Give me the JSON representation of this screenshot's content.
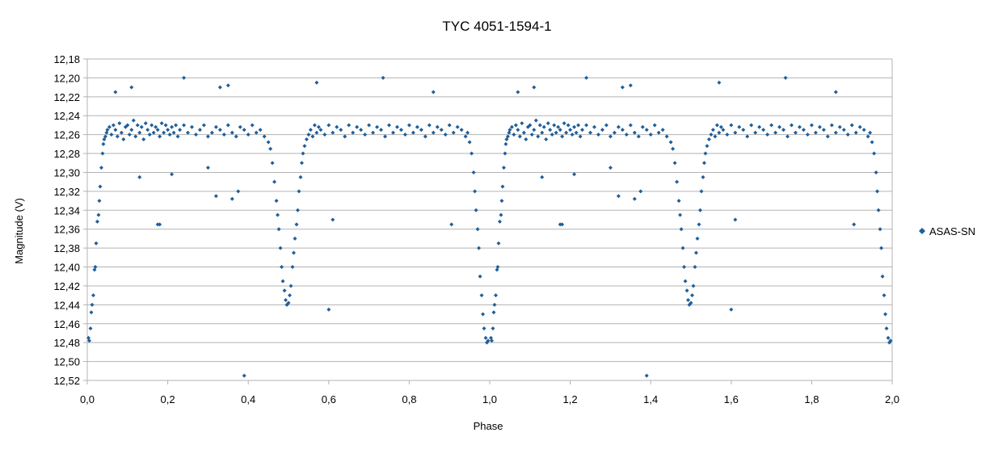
{
  "chart_data": {
    "type": "scatter",
    "title": "TYC 4051-1594-1",
    "xlabel": "Phase",
    "ylabel": "Magnitude (V)",
    "xlim": [
      0.0,
      2.0
    ],
    "ylim": [
      12.18,
      12.52
    ],
    "y_inverted": true,
    "x_ticks": [
      "0,0",
      "0,2",
      "0,4",
      "0,6",
      "0,8",
      "1,0",
      "1,2",
      "1,4",
      "1,6",
      "1,8",
      "2,0"
    ],
    "y_ticks": [
      "12,18",
      "12,20",
      "12,22",
      "12,24",
      "12,26",
      "12,28",
      "12,30",
      "12,32",
      "12,34",
      "12,36",
      "12,38",
      "12,40",
      "12,42",
      "12,44",
      "12,46",
      "12,48",
      "12,50",
      "12,52"
    ],
    "grid": "horizontal",
    "legend": "right",
    "colors": {
      "series": "#1f5f99",
      "grid": "#b3b3b3",
      "axis": "#b3b3b3"
    },
    "series": [
      {
        "name": "ASAS-SN",
        "marker": "diamond",
        "x": [
          0.003,
          0.005,
          0.008,
          0.01,
          0.012,
          0.015,
          0.018,
          0.02,
          0.022,
          0.025,
          0.028,
          0.03,
          0.032,
          0.035,
          0.038,
          0.04,
          0.042,
          0.045,
          0.048,
          0.05,
          0.055,
          0.06,
          0.065,
          0.07,
          0.075,
          0.08,
          0.085,
          0.09,
          0.095,
          0.1,
          0.105,
          0.11,
          0.115,
          0.12,
          0.125,
          0.13,
          0.135,
          0.14,
          0.145,
          0.15,
          0.155,
          0.16,
          0.165,
          0.17,
          0.175,
          0.18,
          0.185,
          0.19,
          0.195,
          0.2,
          0.205,
          0.21,
          0.215,
          0.22,
          0.225,
          0.23,
          0.24,
          0.25,
          0.26,
          0.27,
          0.28,
          0.29,
          0.3,
          0.31,
          0.32,
          0.33,
          0.34,
          0.35,
          0.36,
          0.37,
          0.38,
          0.39,
          0.4,
          0.41,
          0.42,
          0.43,
          0.44,
          0.45,
          0.455,
          0.46,
          0.465,
          0.47,
          0.473,
          0.476,
          0.48,
          0.483,
          0.486,
          0.49,
          0.493,
          0.496,
          0.5,
          0.503,
          0.506,
          0.51,
          0.513,
          0.516,
          0.52,
          0.523,
          0.526,
          0.53,
          0.533,
          0.536,
          0.54,
          0.545,
          0.55,
          0.555,
          0.56,
          0.565,
          0.57,
          0.575,
          0.58,
          0.59,
          0.6,
          0.61,
          0.62,
          0.63,
          0.64,
          0.65,
          0.66,
          0.67,
          0.68,
          0.69,
          0.7,
          0.71,
          0.72,
          0.73,
          0.74,
          0.75,
          0.76,
          0.77,
          0.78,
          0.79,
          0.8,
          0.81,
          0.82,
          0.83,
          0.84,
          0.85,
          0.86,
          0.87,
          0.88,
          0.89,
          0.9,
          0.91,
          0.92,
          0.93,
          0.94,
          0.945,
          0.95,
          0.955,
          0.96,
          0.963,
          0.966,
          0.97,
          0.973,
          0.976,
          0.98,
          0.983,
          0.986,
          0.99,
          0.993,
          0.996,
          0.11,
          0.18,
          0.24,
          0.33,
          0.35,
          0.39,
          0.57,
          0.6,
          0.735,
          0.86,
          0.905,
          0.175,
          0.36,
          0.61,
          0.375,
          0.32,
          0.21,
          0.13,
          0.3,
          0.07
        ],
        "y": [
          12.475,
          12.478,
          12.465,
          12.448,
          12.44,
          12.43,
          12.403,
          12.4,
          12.375,
          12.352,
          12.345,
          12.33,
          12.315,
          12.295,
          12.28,
          12.27,
          12.265,
          12.262,
          12.258,
          12.255,
          12.252,
          12.26,
          12.25,
          12.255,
          12.262,
          12.248,
          12.258,
          12.265,
          12.252,
          12.25,
          12.26,
          12.255,
          12.245,
          12.262,
          12.25,
          12.258,
          12.252,
          12.265,
          12.248,
          12.255,
          12.26,
          12.25,
          12.258,
          12.252,
          12.255,
          12.262,
          12.248,
          12.258,
          12.25,
          12.255,
          12.26,
          12.252,
          12.258,
          12.25,
          12.262,
          12.255,
          12.25,
          12.258,
          12.252,
          12.26,
          12.255,
          12.25,
          12.262,
          12.258,
          12.252,
          12.255,
          12.26,
          12.25,
          12.258,
          12.262,
          12.252,
          12.255,
          12.26,
          12.25,
          12.258,
          12.255,
          12.262,
          12.268,
          12.275,
          12.29,
          12.31,
          12.33,
          12.345,
          12.36,
          12.38,
          12.4,
          12.415,
          12.425,
          12.435,
          12.44,
          12.438,
          12.43,
          12.42,
          12.4,
          12.385,
          12.37,
          12.355,
          12.34,
          12.32,
          12.305,
          12.29,
          12.28,
          12.272,
          12.265,
          12.26,
          12.255,
          12.262,
          12.25,
          12.258,
          12.252,
          12.255,
          12.26,
          12.25,
          12.258,
          12.252,
          12.255,
          12.262,
          12.25,
          12.258,
          12.252,
          12.255,
          12.26,
          12.25,
          12.258,
          12.252,
          12.255,
          12.262,
          12.25,
          12.258,
          12.252,
          12.255,
          12.26,
          12.25,
          12.258,
          12.252,
          12.255,
          12.262,
          12.25,
          12.258,
          12.252,
          12.255,
          12.26,
          12.25,
          12.258,
          12.252,
          12.255,
          12.262,
          12.258,
          12.268,
          12.28,
          12.3,
          12.32,
          12.34,
          12.36,
          12.38,
          12.41,
          12.43,
          12.45,
          12.465,
          12.475,
          12.48,
          12.478,
          12.21,
          12.355,
          12.2,
          12.21,
          12.208,
          12.515,
          12.205,
          12.445,
          12.2,
          12.215,
          12.355,
          12.355,
          12.328,
          12.35,
          12.32,
          12.325,
          12.302,
          12.305,
          12.295,
          12.215
        ]
      }
    ]
  }
}
